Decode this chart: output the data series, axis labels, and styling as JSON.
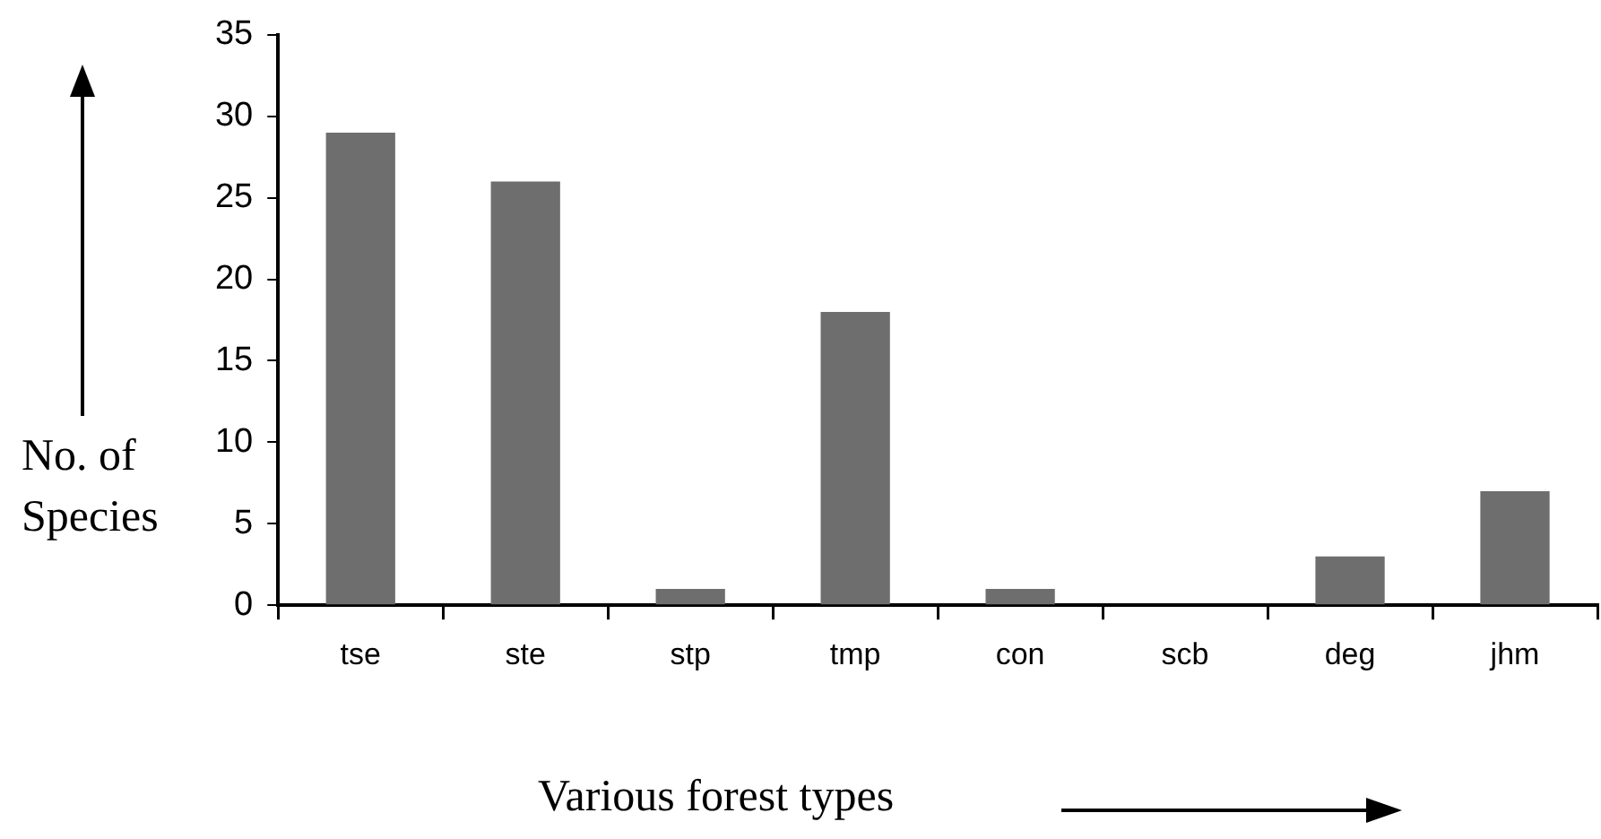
{
  "chart_data": {
    "type": "bar",
    "xlabel": "Various forest types",
    "ylabel": "No. of Species",
    "categories": [
      "tse",
      "ste",
      "stp",
      "tmp",
      "con",
      "scb",
      "deg",
      "jhm"
    ],
    "values": [
      29,
      26,
      1,
      18,
      1,
      0,
      3,
      7
    ],
    "color": "#6e6e6e",
    "ylim": [
      0,
      35
    ],
    "yticks": [
      0,
      5,
      10,
      15,
      20,
      25,
      30,
      35
    ],
    "grid": false,
    "legend": false
  }
}
